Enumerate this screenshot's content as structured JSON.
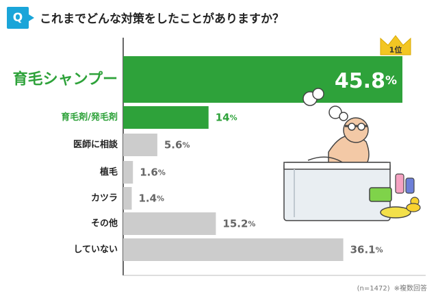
{
  "question": {
    "badge": "Q",
    "text": "これまでどんな対策をしたことがありますか？"
  },
  "chart_data": {
    "type": "bar",
    "orientation": "horizontal",
    "categories": [
      "育毛シャンプー",
      "育毛剤/発毛剤",
      "医師に相談",
      "植毛",
      "カツラ",
      "その他",
      "していない"
    ],
    "values": [
      45.8,
      14,
      5.6,
      1.6,
      1.4,
      15.2,
      36.1
    ],
    "value_labels": [
      "45.8",
      "14",
      "5.6",
      "1.6",
      "1.4",
      "15.2",
      "36.1"
    ],
    "unit": "%",
    "xlim": [
      0,
      50
    ],
    "grid": false,
    "highlight_color": "#2ea23a",
    "base_color": "#cccccc",
    "rank_badge": "1位"
  },
  "footnote": {
    "n": "(n=1472)",
    "note": "※複数回答"
  },
  "colors": {
    "question_badge": "#1aa5d9",
    "green": "#2ea23a",
    "gray": "#cccccc",
    "crown": "#f3c623"
  }
}
